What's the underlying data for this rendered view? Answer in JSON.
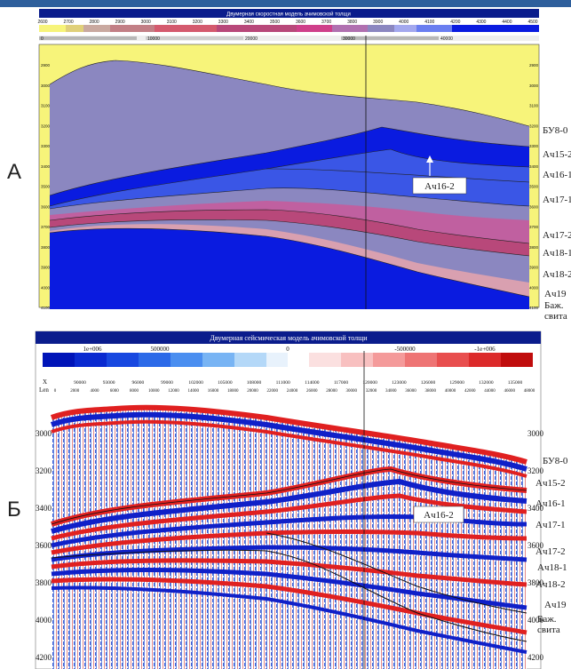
{
  "panel_a": {
    "label": "А",
    "title": "Двумерная скоростная модель ачимовской толщи",
    "colorbar_ticks": [
      "2600",
      "2700",
      "2800",
      "2900",
      "3000",
      "3100",
      "3200",
      "3300",
      "3400",
      "3500",
      "3600",
      "3700",
      "3800",
      "3900",
      "4000",
      "4100",
      "4200",
      "4300",
      "4400",
      "4500"
    ],
    "scale_values": [
      "0",
      "10000",
      "20000",
      "30000",
      "40000"
    ],
    "depth_ticks": [
      "2900",
      "3000",
      "3100",
      "3200",
      "3300",
      "3400",
      "3500",
      "3600",
      "3700",
      "3800",
      "3900",
      "4000",
      "4100"
    ],
    "callout": "Ач16-2"
  },
  "panel_b": {
    "label": "Б",
    "title": "Двумерная сейсмическая модель ачимовской толщи",
    "colorbar_ticks": [
      "1e+006",
      "500000",
      "0",
      "-500000",
      "-1e+006"
    ],
    "x_row_label": "X",
    "len_row_label": "Len",
    "x_ticks": [
      "90000",
      "93000",
      "96000",
      "99000",
      "102000",
      "105000",
      "108000",
      "111000",
      "114000",
      "117000",
      "120000",
      "123000",
      "126000",
      "129000",
      "132000",
      "135000"
    ],
    "len_ticks": [
      "0",
      "2000",
      "4000",
      "6000",
      "8000",
      "10000",
      "12000",
      "14000",
      "16000",
      "18000",
      "20000",
      "22000",
      "24000",
      "26000",
      "28000",
      "30000",
      "32000",
      "34000",
      "36000",
      "38000",
      "40000",
      "42000",
      "44000",
      "46000",
      "48000"
    ],
    "depth_ticks": [
      "3000",
      "3200",
      "3400",
      "3600",
      "3800",
      "4000",
      "4200"
    ],
    "callout": "Ач16-2"
  },
  "horizons_a": [
    "БУ8-0",
    "Ач15-2",
    "Ач16-1",
    "Ач17-1",
    "Ач17-2",
    "Ач18-1",
    "Ач18-2",
    "Ач19",
    "Баж.",
    "свита"
  ],
  "horizons_b": [
    "БУ8-0",
    "Ач15-2",
    "Ач16-1",
    "Ач17-1",
    "Ач17-2",
    "Ач18-1",
    "Ач18-2",
    "Ач19",
    "Баж.",
    "свита"
  ],
  "colors": {
    "frame_blue": "#0a1c8c",
    "sky_yellow": "#f7f47a",
    "lavender": "#8b87c0",
    "deep_blue": "#0a1be0",
    "mid_blue": "#3a56e6",
    "magenta": "#b8487a",
    "pink": "#d9a0b0",
    "seismic_red": "#d62020",
    "seismic_blue": "#1020c8"
  }
}
